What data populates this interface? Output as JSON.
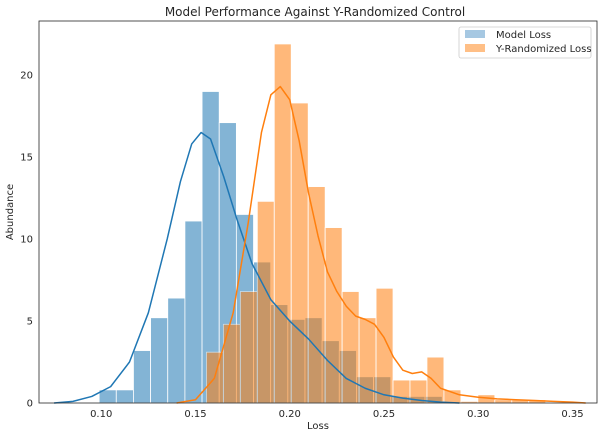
{
  "chart_data": {
    "type": "histogram",
    "title": "Model Performance Against Y-Randomized Control",
    "xlabel": "Loss",
    "ylabel": "Abundance",
    "xlim": [
      0.067,
      0.363
    ],
    "ylim": [
      0,
      23.3
    ],
    "xticks": [
      0.1,
      0.15,
      0.2,
      0.25,
      0.3,
      0.35
    ],
    "xtick_labels": [
      "0.10",
      "0.15",
      "0.20",
      "0.25",
      "0.30",
      "0.35"
    ],
    "yticks": [
      0,
      5,
      10,
      15,
      20
    ],
    "ytick_labels": [
      "0",
      "5",
      "10",
      "15",
      "20"
    ],
    "grid": false,
    "legend_position": "top-right",
    "series": [
      {
        "name": "Model Loss",
        "bar_color": "#a6c8e2",
        "line_color": "#1f77b4",
        "bin_width": 0.0091,
        "bins": [
          {
            "x0": 0.0989,
            "height": 0.8
          },
          {
            "x0": 0.108,
            "height": 0.8
          },
          {
            "x0": 0.1171,
            "height": 3.2
          },
          {
            "x0": 0.1262,
            "height": 5.2
          },
          {
            "x0": 0.1353,
            "height": 6.4
          },
          {
            "x0": 0.1444,
            "height": 11.1
          },
          {
            "x0": 0.1535,
            "height": 19.0
          },
          {
            "x0": 0.1626,
            "height": 17.1
          },
          {
            "x0": 0.1717,
            "height": 11.5
          },
          {
            "x0": 0.1808,
            "height": 8.6
          },
          {
            "x0": 0.1899,
            "height": 6.0
          },
          {
            "x0": 0.199,
            "height": 5.1
          },
          {
            "x0": 0.2081,
            "height": 5.2
          },
          {
            "x0": 0.2172,
            "height": 3.8
          },
          {
            "x0": 0.2263,
            "height": 3.2
          },
          {
            "x0": 0.2354,
            "height": 1.6
          },
          {
            "x0": 0.2445,
            "height": 1.6
          },
          {
            "x0": 0.2536,
            "height": 0.4
          },
          {
            "x0": 0.2627,
            "height": 0.4
          },
          {
            "x0": 0.2718,
            "height": 0.4
          }
        ],
        "kde": {
          "x": [
            0.075,
            0.085,
            0.095,
            0.105,
            0.115,
            0.125,
            0.135,
            0.142,
            0.148,
            0.153,
            0.158,
            0.165,
            0.172,
            0.18,
            0.19,
            0.2,
            0.21,
            0.22,
            0.23,
            0.24,
            0.25,
            0.26,
            0.27,
            0.28,
            0.29
          ],
          "y": [
            0.0,
            0.1,
            0.4,
            1.0,
            2.5,
            5.5,
            10.0,
            13.5,
            15.8,
            16.5,
            16.1,
            13.8,
            11.2,
            8.5,
            6.3,
            5.0,
            3.9,
            2.6,
            1.5,
            0.9,
            0.5,
            0.3,
            0.15,
            0.05,
            0.0
          ]
        }
      },
      {
        "name": "Y-Randomized Loss",
        "bar_color": "#ffbf86",
        "line_color": "#ff7f0e",
        "bin_width": 0.009,
        "bins": [
          {
            "x0": 0.1558,
            "height": 3.1
          },
          {
            "x0": 0.1648,
            "height": 4.8
          },
          {
            "x0": 0.1738,
            "height": 6.8
          },
          {
            "x0": 0.1828,
            "height": 12.3
          },
          {
            "x0": 0.1918,
            "height": 21.9
          },
          {
            "x0": 0.2008,
            "height": 18.3
          },
          {
            "x0": 0.2098,
            "height": 13.2
          },
          {
            "x0": 0.2188,
            "height": 10.7
          },
          {
            "x0": 0.2278,
            "height": 6.8
          },
          {
            "x0": 0.2368,
            "height": 5.2
          },
          {
            "x0": 0.2458,
            "height": 7.0
          },
          {
            "x0": 0.2548,
            "height": 1.4
          },
          {
            "x0": 0.2638,
            "height": 1.4
          },
          {
            "x0": 0.2728,
            "height": 2.8
          },
          {
            "x0": 0.2818,
            "height": 0.8
          },
          {
            "x0": 0.2908,
            "height": 0.1
          },
          {
            "x0": 0.2998,
            "height": 0.5
          },
          {
            "x0": 0.3088,
            "height": 0.2
          },
          {
            "x0": 0.3178,
            "height": 0.2
          },
          {
            "x0": 0.3268,
            "height": 0.2
          }
        ],
        "kde": {
          "x": [
            0.14,
            0.15,
            0.16,
            0.17,
            0.178,
            0.185,
            0.19,
            0.195,
            0.2,
            0.205,
            0.21,
            0.215,
            0.22,
            0.225,
            0.23,
            0.235,
            0.24,
            0.245,
            0.25,
            0.255,
            0.26,
            0.265,
            0.27,
            0.275,
            0.28,
            0.29,
            0.3,
            0.31,
            0.32,
            0.33,
            0.34,
            0.35,
            0.357
          ],
          "y": [
            0.0,
            0.2,
            1.5,
            5.5,
            11.0,
            16.5,
            18.8,
            19.3,
            18.5,
            16.0,
            12.8,
            10.2,
            8.0,
            6.8,
            5.9,
            5.3,
            5.1,
            4.8,
            4.0,
            2.8,
            2.0,
            1.8,
            1.9,
            1.5,
            0.9,
            0.5,
            0.35,
            0.25,
            0.2,
            0.15,
            0.1,
            0.05,
            0.0
          ]
        }
      }
    ]
  }
}
